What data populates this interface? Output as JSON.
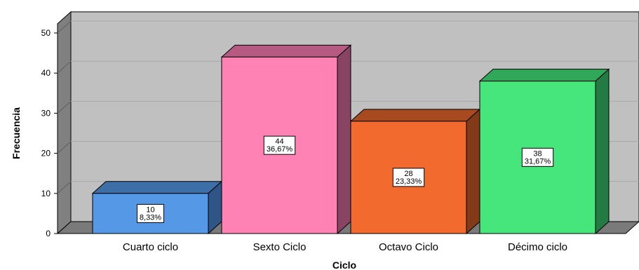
{
  "chart_data": {
    "type": "bar",
    "categories": [
      "Cuarto ciclo",
      "Sexto Ciclo",
      "Octavo Ciclo",
      "Décimo ciclo"
    ],
    "values": [
      10,
      44,
      28,
      38
    ],
    "percent_labels": [
      "8,33%",
      "36,67%",
      "23,33%",
      "31,67%"
    ],
    "xlabel": "Ciclo",
    "ylabel": "Frecuencia",
    "ylim": [
      0,
      50
    ],
    "yticks": [
      0,
      10,
      20,
      30,
      40,
      50
    ],
    "grid": true,
    "legend": "none",
    "style": "3d",
    "colors": {
      "bar_fronts": [
        "#5599e6",
        "#ff82b4",
        "#f26a2e",
        "#46e67d"
      ],
      "bar_tops": [
        "#3c6ea8",
        "#b75a82",
        "#a84a20",
        "#30a85a"
      ],
      "bar_sides": [
        "#2e5585",
        "#8a4463",
        "#833a18",
        "#237a42"
      ],
      "plot_background": "#c0c0c0",
      "wall_side": "#808080",
      "floor": "#7a7a7a",
      "gridline": "#a8a8a8"
    }
  }
}
